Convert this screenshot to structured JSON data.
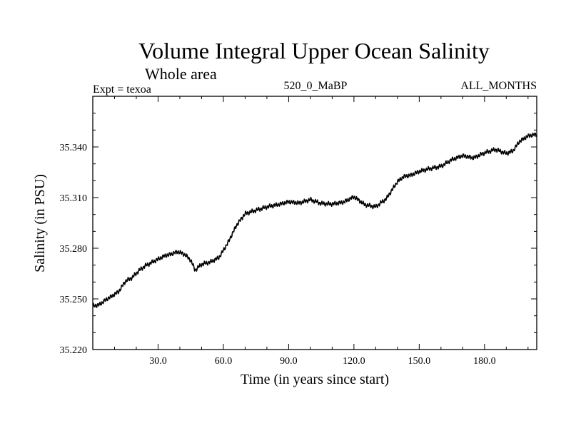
{
  "chart_data": {
    "type": "line",
    "title": "Volume Integral Upper Ocean Salinity",
    "subtitle": "Whole area",
    "left_label": "Expt = texoa",
    "center_label": "520_0_MaBP",
    "right_label": "ALL_MONTHS",
    "xlabel": "Time (in years since start)",
    "ylabel": "Salinity (in PSU)",
    "xlim": [
      0,
      204
    ],
    "ylim": [
      35.22,
      35.37
    ],
    "x_ticks": [
      30,
      60,
      90,
      120,
      150,
      180
    ],
    "x_tick_labels": [
      "30.0",
      "60.0",
      "90.0",
      "120.0",
      "150.0",
      "180.0"
    ],
    "y_ticks": [
      35.22,
      35.25,
      35.28,
      35.31,
      35.34
    ],
    "y_tick_labels": [
      "35.220",
      "35.250",
      "35.280",
      "35.310",
      "35.340"
    ],
    "series": [
      {
        "name": "salinity",
        "x": [
          0,
          3,
          6,
          9,
          12,
          15,
          18,
          21,
          24,
          27,
          30,
          33,
          36,
          39,
          42,
          45,
          47,
          50,
          54,
          58,
          62,
          66,
          70,
          75,
          80,
          85,
          90,
          95,
          100,
          105,
          110,
          115,
          120,
          125,
          130,
          135,
          140,
          143,
          146,
          150,
          155,
          160,
          165,
          170,
          175,
          180,
          185,
          190,
          193,
          196,
          200,
          204
        ],
        "values": [
          35.2458,
          35.2465,
          35.2495,
          35.2518,
          35.2545,
          35.2605,
          35.2625,
          35.2665,
          35.2695,
          35.2715,
          35.2735,
          35.2755,
          35.2765,
          35.278,
          35.2765,
          35.273,
          35.267,
          35.2705,
          35.2718,
          35.2745,
          35.283,
          35.2935,
          35.3005,
          35.3025,
          35.3045,
          35.3058,
          35.3075,
          35.3068,
          35.3088,
          35.3065,
          35.3062,
          35.3072,
          35.3105,
          35.3058,
          35.3045,
          35.3095,
          35.3195,
          35.3225,
          35.3232,
          35.3255,
          35.3272,
          35.3285,
          35.3325,
          35.3348,
          35.3335,
          35.3365,
          35.3385,
          35.3362,
          35.3375,
          35.3432,
          35.3465,
          35.3475
        ]
      }
    ]
  }
}
